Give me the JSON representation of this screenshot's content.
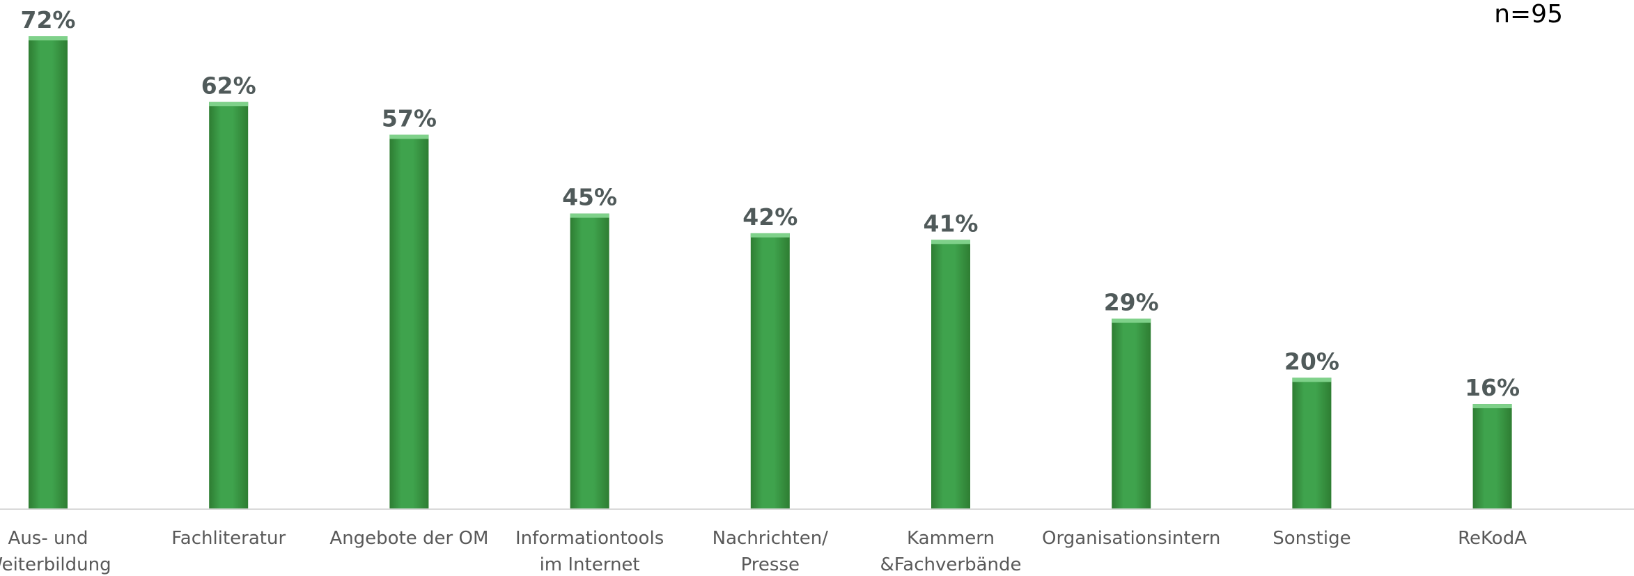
{
  "note": "n=95",
  "chart_data": {
    "type": "bar",
    "categories": [
      [
        "Aus- und",
        "Weiterbildung"
      ],
      [
        "Fachliteratur"
      ],
      [
        "Angebote der OM"
      ],
      [
        "Informationtools",
        "im Internet"
      ],
      [
        "Nachrichten/",
        "Presse"
      ],
      [
        "Kammern",
        "&Fachverbände"
      ],
      [
        "Organisationsintern"
      ],
      [
        "Sonstige"
      ],
      [
        "ReKodA"
      ]
    ],
    "values": [
      72,
      62,
      57,
      45,
      42,
      41,
      29,
      20,
      16
    ],
    "value_labels": [
      "72%",
      "62%",
      "57%",
      "45%",
      "42%",
      "41%",
      "29%",
      "20%",
      "16%"
    ],
    "ylim": [
      0,
      72
    ],
    "grid": false,
    "legend": "none",
    "bar_color": "#3fa34d",
    "bar_color_dark": "#2e7d32",
    "bar_color_light": "#7fd18a"
  }
}
